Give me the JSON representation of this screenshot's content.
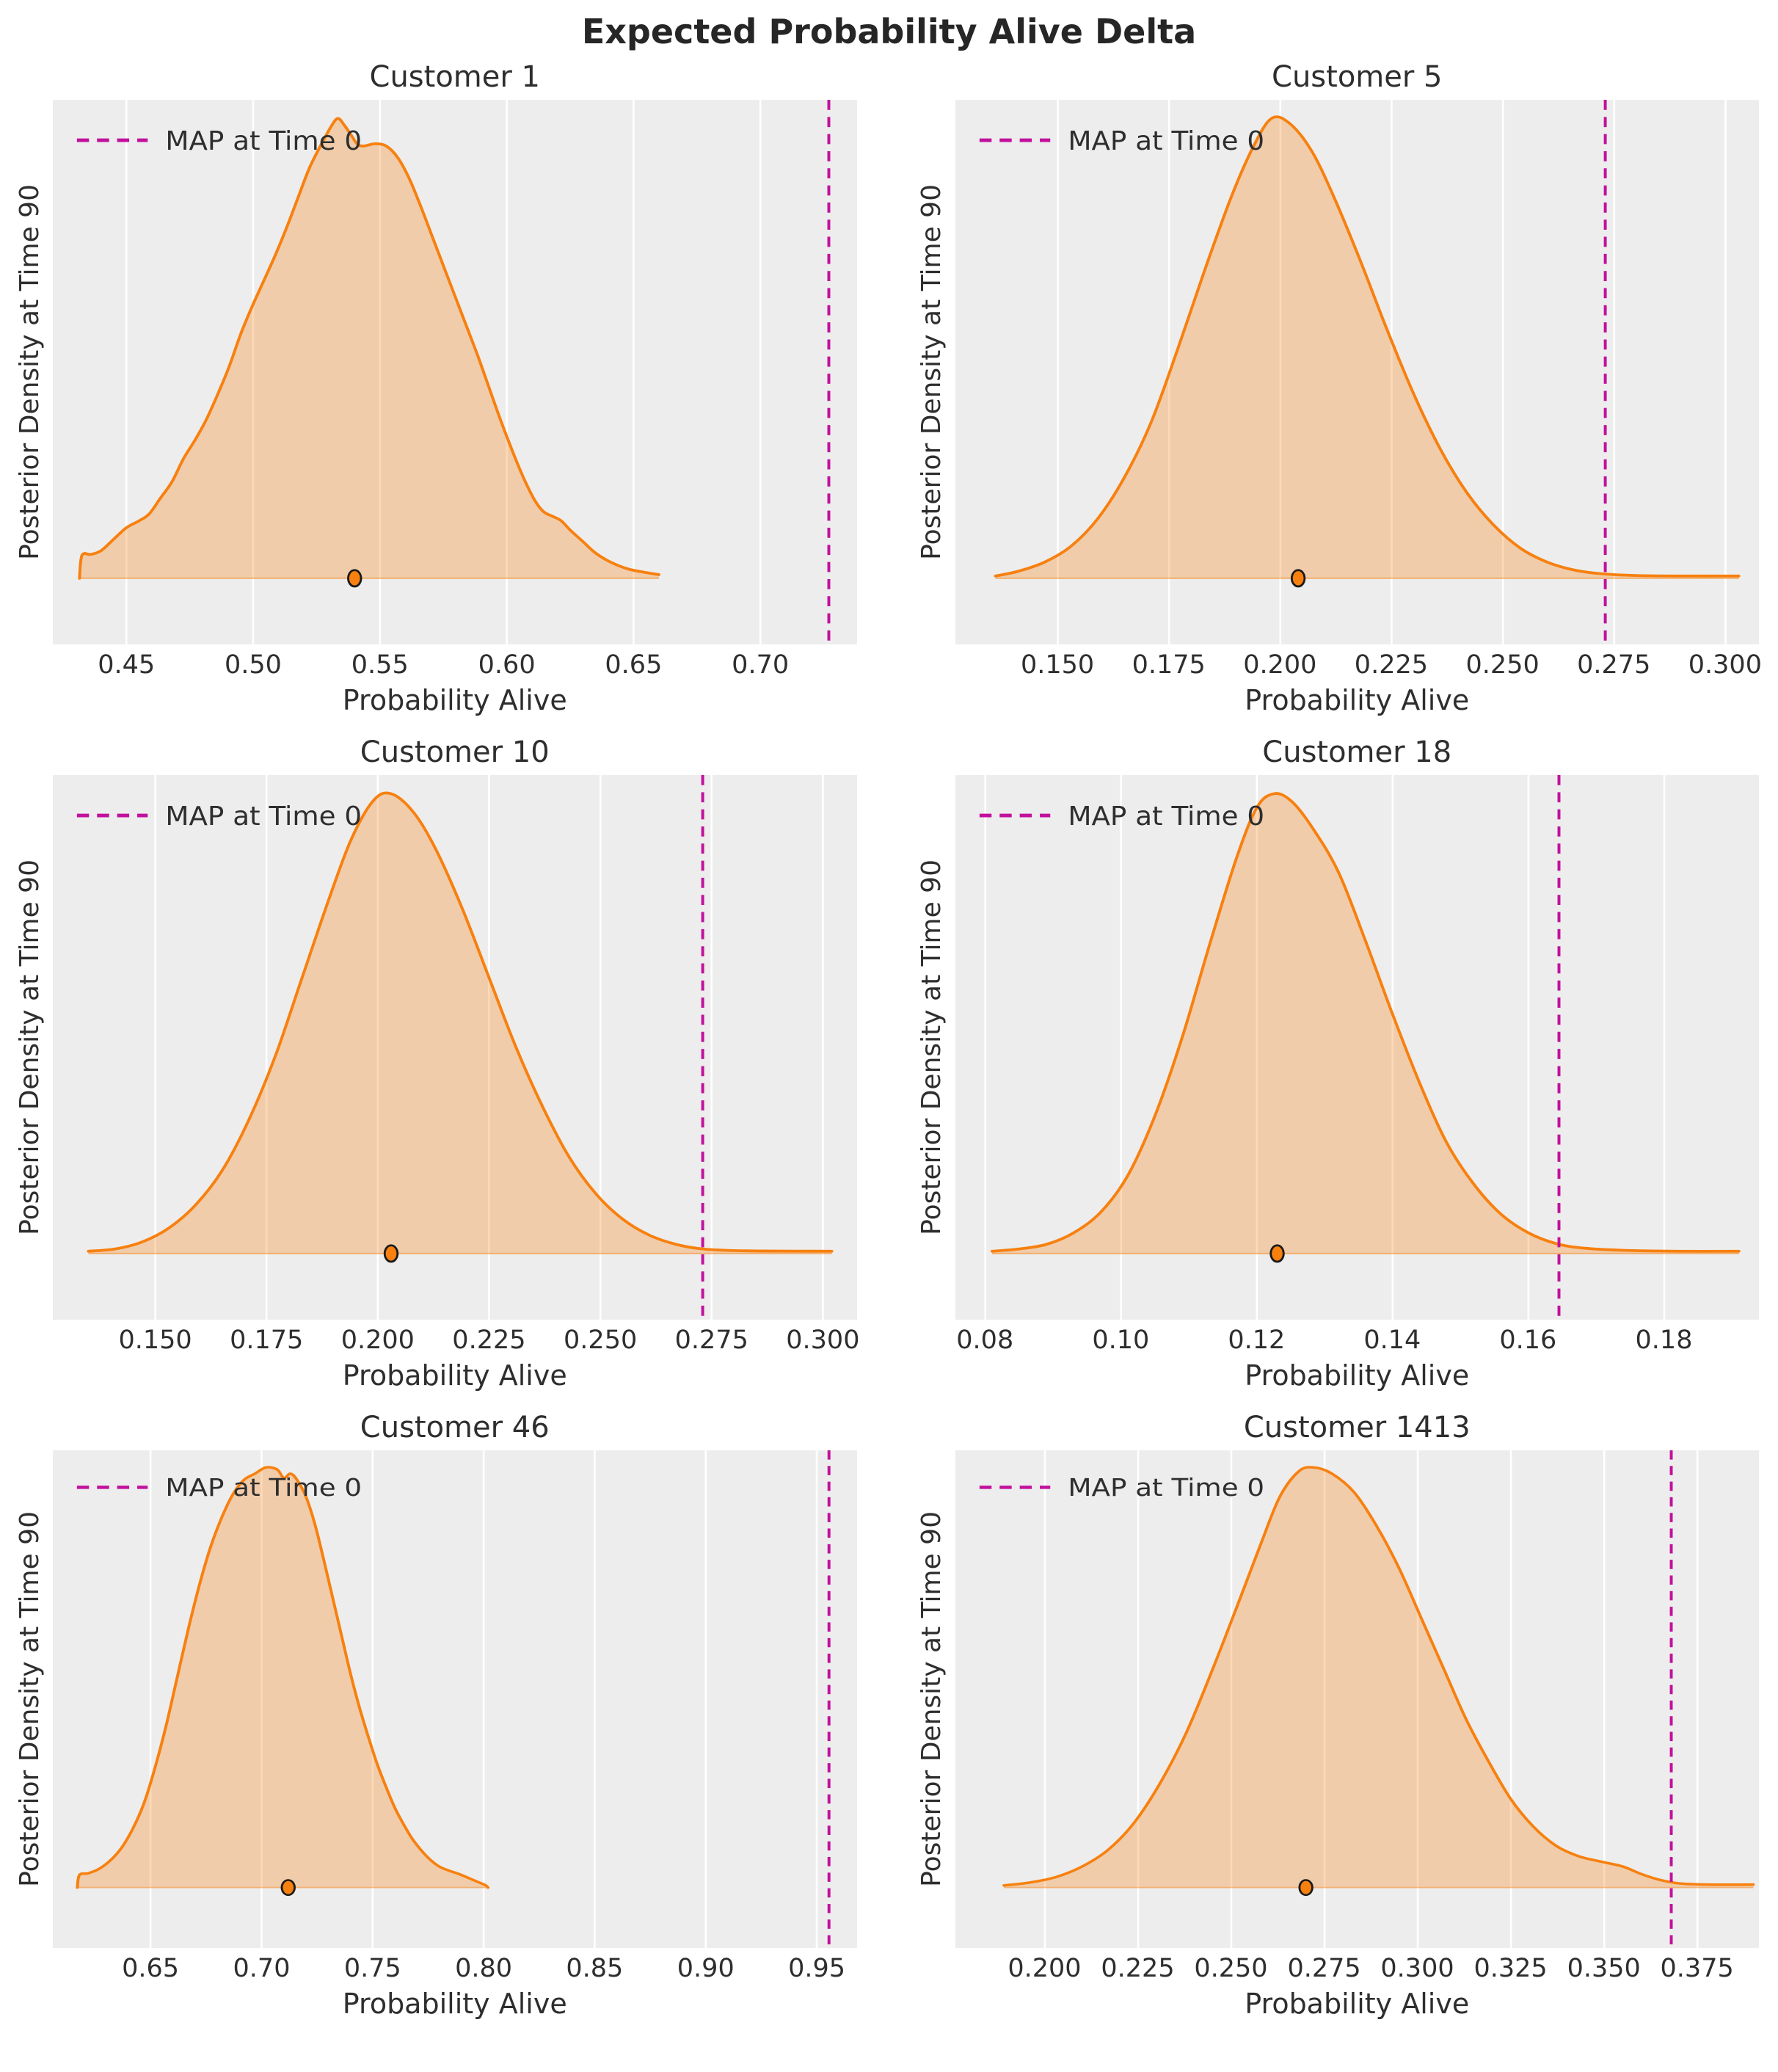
{
  "figure": {
    "title": "Expected Probability Alive Delta"
  },
  "legend": {
    "label": "MAP at Time 0"
  },
  "axes": {
    "xlabel": "Probability Alive",
    "ylabel": "Posterior Density at Time 90"
  },
  "colors": {
    "curve": "#f7800f",
    "fill": "rgba(247,128,15,0.30)",
    "baseline": "rgba(247,128,15,0.45)",
    "map_line": "#c2109c",
    "plot_bg": "#ededed",
    "gridline": "#ffffff",
    "text": "#2e2e2e",
    "dot_fill": "#f7800f",
    "dot_edge": "#1a1a1a"
  },
  "chart_data": [
    {
      "type": "area",
      "title": "Customer 1",
      "xlabel": "Probability Alive",
      "ylabel": "Posterior Density at Time 90",
      "xlim": [
        0.421,
        0.738
      ],
      "ticks": [
        0.45,
        0.5,
        0.55,
        0.6,
        0.65,
        0.7
      ],
      "tick_labels": [
        "0.45",
        "0.50",
        "0.55",
        "0.60",
        "0.65",
        "0.70"
      ],
      "map_at_time_0": 0.727,
      "dot_x": 0.54,
      "kde_y_normalized": true,
      "kde": [
        [
          0.4315,
          0.0
        ],
        [
          0.4325,
          0.05
        ],
        [
          0.436,
          0.052
        ],
        [
          0.44,
          0.06
        ],
        [
          0.445,
          0.085
        ],
        [
          0.45,
          0.11
        ],
        [
          0.455,
          0.125
        ],
        [
          0.459,
          0.14
        ],
        [
          0.4635,
          0.175
        ],
        [
          0.468,
          0.21
        ],
        [
          0.4725,
          0.26
        ],
        [
          0.477,
          0.3
        ],
        [
          0.4815,
          0.345
        ],
        [
          0.486,
          0.4
        ],
        [
          0.4905,
          0.46
        ],
        [
          0.495,
          0.53
        ],
        [
          0.4995,
          0.59
        ],
        [
          0.504,
          0.645
        ],
        [
          0.5085,
          0.7
        ],
        [
          0.513,
          0.76
        ],
        [
          0.5175,
          0.825
        ],
        [
          0.522,
          0.89
        ],
        [
          0.5265,
          0.94
        ],
        [
          0.531,
          0.985
        ],
        [
          0.5335,
          1.0
        ],
        [
          0.536,
          0.985
        ],
        [
          0.5385,
          0.965
        ],
        [
          0.541,
          0.945
        ],
        [
          0.5435,
          0.94
        ],
        [
          0.548,
          0.945
        ],
        [
          0.5525,
          0.94
        ],
        [
          0.557,
          0.915
        ],
        [
          0.5615,
          0.87
        ],
        [
          0.566,
          0.81
        ],
        [
          0.5705,
          0.745
        ],
        [
          0.575,
          0.68
        ],
        [
          0.5795,
          0.615
        ],
        [
          0.584,
          0.55
        ],
        [
          0.5885,
          0.485
        ],
        [
          0.593,
          0.415
        ],
        [
          0.5975,
          0.345
        ],
        [
          0.602,
          0.28
        ],
        [
          0.6065,
          0.22
        ],
        [
          0.611,
          0.17
        ],
        [
          0.6145,
          0.145
        ],
        [
          0.618,
          0.135
        ],
        [
          0.6215,
          0.125
        ],
        [
          0.625,
          0.105
        ],
        [
          0.63,
          0.08
        ],
        [
          0.635,
          0.055
        ],
        [
          0.641,
          0.035
        ],
        [
          0.648,
          0.02
        ],
        [
          0.6555,
          0.012
        ],
        [
          0.66,
          0.008
        ]
      ]
    },
    {
      "type": "area",
      "title": "Customer 5",
      "xlabel": "Probability Alive",
      "ylabel": "Posterior Density at Time 90",
      "xlim": [
        0.127,
        0.3076
      ],
      "ticks": [
        0.15,
        0.175,
        0.2,
        0.225,
        0.25,
        0.275,
        0.3
      ],
      "tick_labels": [
        "0.150",
        "0.175",
        "0.200",
        "0.225",
        "0.250",
        "0.275",
        "0.300"
      ],
      "map_at_time_0": 0.273,
      "dot_x": 0.204,
      "kde_y_normalized": true,
      "kde": [
        [
          0.136,
          0.005
        ],
        [
          0.141,
          0.015
        ],
        [
          0.147,
          0.035
        ],
        [
          0.153,
          0.07
        ],
        [
          0.159,
          0.13
        ],
        [
          0.165,
          0.22
        ],
        [
          0.171,
          0.34
        ],
        [
          0.177,
          0.5
        ],
        [
          0.183,
          0.67
        ],
        [
          0.189,
          0.83
        ],
        [
          0.194,
          0.94
        ],
        [
          0.198,
          1.0
        ],
        [
          0.202,
          0.99
        ],
        [
          0.207,
          0.93
        ],
        [
          0.212,
          0.83
        ],
        [
          0.218,
          0.69
        ],
        [
          0.224,
          0.54
        ],
        [
          0.23,
          0.4
        ],
        [
          0.236,
          0.28
        ],
        [
          0.242,
          0.185
        ],
        [
          0.248,
          0.115
        ],
        [
          0.254,
          0.065
        ],
        [
          0.26,
          0.035
        ],
        [
          0.266,
          0.018
        ],
        [
          0.272,
          0.01
        ],
        [
          0.28,
          0.006
        ],
        [
          0.29,
          0.005
        ],
        [
          0.303,
          0.005
        ]
      ]
    },
    {
      "type": "area",
      "title": "Customer 10",
      "xlabel": "Probability Alive",
      "ylabel": "Posterior Density at Time 90",
      "xlim": [
        0.127,
        0.3076
      ],
      "ticks": [
        0.15,
        0.175,
        0.2,
        0.225,
        0.25,
        0.275,
        0.3
      ],
      "tick_labels": [
        "0.150",
        "0.175",
        "0.200",
        "0.225",
        "0.250",
        "0.275",
        "0.300"
      ],
      "map_at_time_0": 0.273,
      "dot_x": 0.203,
      "kde_y_normalized": true,
      "kde": [
        [
          0.135,
          0.005
        ],
        [
          0.141,
          0.01
        ],
        [
          0.147,
          0.025
        ],
        [
          0.153,
          0.055
        ],
        [
          0.159,
          0.105
        ],
        [
          0.165,
          0.18
        ],
        [
          0.171,
          0.29
        ],
        [
          0.177,
          0.43
        ],
        [
          0.183,
          0.6
        ],
        [
          0.189,
          0.77
        ],
        [
          0.194,
          0.9
        ],
        [
          0.199,
          0.985
        ],
        [
          0.203,
          1.0
        ],
        [
          0.208,
          0.96
        ],
        [
          0.213,
          0.88
        ],
        [
          0.219,
          0.75
        ],
        [
          0.225,
          0.6
        ],
        [
          0.231,
          0.45
        ],
        [
          0.237,
          0.32
        ],
        [
          0.243,
          0.21
        ],
        [
          0.249,
          0.13
        ],
        [
          0.255,
          0.075
        ],
        [
          0.261,
          0.04
        ],
        [
          0.267,
          0.02
        ],
        [
          0.273,
          0.01
        ],
        [
          0.282,
          0.006
        ],
        [
          0.302,
          0.005
        ]
      ]
    },
    {
      "type": "area",
      "title": "Customer 18",
      "xlabel": "Probability Alive",
      "ylabel": "Posterior Density at Time 90",
      "xlim": [
        0.0756,
        0.194
      ],
      "ticks": [
        0.08,
        0.1,
        0.12,
        0.14,
        0.16,
        0.18
      ],
      "tick_labels": [
        "0.08",
        "0.10",
        "0.12",
        "0.14",
        "0.16",
        "0.18"
      ],
      "map_at_time_0": 0.1645,
      "dot_x": 0.123,
      "kde_y_normalized": true,
      "kde": [
        [
          0.081,
          0.005
        ],
        [
          0.085,
          0.01
        ],
        [
          0.089,
          0.02
        ],
        [
          0.093,
          0.045
        ],
        [
          0.097,
          0.09
        ],
        [
          0.101,
          0.17
        ],
        [
          0.105,
          0.3
        ],
        [
          0.109,
          0.47
        ],
        [
          0.113,
          0.67
        ],
        [
          0.117,
          0.86
        ],
        [
          0.12,
          0.97
        ],
        [
          0.1225,
          1.0
        ],
        [
          0.125,
          0.985
        ],
        [
          0.128,
          0.93
        ],
        [
          0.132,
          0.83
        ],
        [
          0.136,
          0.68
        ],
        [
          0.14,
          0.52
        ],
        [
          0.144,
          0.37
        ],
        [
          0.148,
          0.24
        ],
        [
          0.152,
          0.15
        ],
        [
          0.156,
          0.085
        ],
        [
          0.16,
          0.045
        ],
        [
          0.164,
          0.022
        ],
        [
          0.168,
          0.012
        ],
        [
          0.174,
          0.007
        ],
        [
          0.182,
          0.005
        ],
        [
          0.191,
          0.005
        ]
      ]
    },
    {
      "type": "area",
      "title": "Customer 46",
      "xlabel": "Probability Alive",
      "ylabel": "Posterior Density at Time 90",
      "xlim": [
        0.606,
        0.968
      ],
      "ticks": [
        0.65,
        0.7,
        0.75,
        0.8,
        0.85,
        0.9,
        0.95
      ],
      "tick_labels": [
        "0.65",
        "0.70",
        "0.75",
        "0.80",
        "0.85",
        "0.90",
        "0.95"
      ],
      "map_at_time_0": 0.9555,
      "dot_x": 0.712,
      "kde_y_normalized": true,
      "kde": [
        [
          0.617,
          0.0
        ],
        [
          0.618,
          0.03
        ],
        [
          0.622,
          0.034
        ],
        [
          0.627,
          0.045
        ],
        [
          0.632,
          0.065
        ],
        [
          0.637,
          0.095
        ],
        [
          0.642,
          0.14
        ],
        [
          0.647,
          0.2
        ],
        [
          0.652,
          0.285
        ],
        [
          0.657,
          0.385
        ],
        [
          0.662,
          0.5
        ],
        [
          0.667,
          0.615
        ],
        [
          0.672,
          0.72
        ],
        [
          0.677,
          0.81
        ],
        [
          0.682,
          0.88
        ],
        [
          0.687,
          0.935
        ],
        [
          0.692,
          0.97
        ],
        [
          0.697,
          0.985
        ],
        [
          0.702,
          1.0
        ],
        [
          0.707,
          0.995
        ],
        [
          0.71,
          0.975
        ],
        [
          0.713,
          0.985
        ],
        [
          0.716,
          0.97
        ],
        [
          0.72,
          0.93
        ],
        [
          0.724,
          0.865
        ],
        [
          0.728,
          0.78
        ],
        [
          0.732,
          0.69
        ],
        [
          0.736,
          0.6
        ],
        [
          0.74,
          0.51
        ],
        [
          0.744,
          0.43
        ],
        [
          0.748,
          0.36
        ],
        [
          0.752,
          0.295
        ],
        [
          0.756,
          0.24
        ],
        [
          0.76,
          0.19
        ],
        [
          0.764,
          0.15
        ],
        [
          0.768,
          0.115
        ],
        [
          0.772,
          0.088
        ],
        [
          0.776,
          0.066
        ],
        [
          0.78,
          0.05
        ],
        [
          0.7845,
          0.04
        ],
        [
          0.789,
          0.032
        ],
        [
          0.7935,
          0.022
        ],
        [
          0.798,
          0.012
        ],
        [
          0.801,
          0.005
        ],
        [
          0.802,
          0.0
        ]
      ]
    },
    {
      "type": "area",
      "title": "Customer 1413",
      "xlabel": "Probability Alive",
      "ylabel": "Posterior Density at Time 90",
      "xlim": [
        0.176,
        0.3916
      ],
      "ticks": [
        0.2,
        0.225,
        0.25,
        0.275,
        0.3,
        0.325,
        0.35,
        0.375
      ],
      "tick_labels": [
        "0.200",
        "0.225",
        "0.250",
        "0.275",
        "0.300",
        "0.325",
        "0.350",
        "0.375"
      ],
      "map_at_time_0": 0.368,
      "dot_x": 0.27,
      "kde_y_normalized": true,
      "kde": [
        [
          0.189,
          0.005
        ],
        [
          0.196,
          0.012
        ],
        [
          0.203,
          0.025
        ],
        [
          0.21,
          0.05
        ],
        [
          0.217,
          0.09
        ],
        [
          0.224,
          0.155
        ],
        [
          0.231,
          0.25
        ],
        [
          0.238,
          0.37
        ],
        [
          0.245,
          0.52
        ],
        [
          0.252,
          0.68
        ],
        [
          0.258,
          0.82
        ],
        [
          0.263,
          0.93
        ],
        [
          0.268,
          0.99
        ],
        [
          0.272,
          1.0
        ],
        [
          0.277,
          0.985
        ],
        [
          0.283,
          0.94
        ],
        [
          0.289,
          0.86
        ],
        [
          0.295,
          0.76
        ],
        [
          0.301,
          0.64
        ],
        [
          0.307,
          0.52
        ],
        [
          0.313,
          0.4
        ],
        [
          0.319,
          0.3
        ],
        [
          0.325,
          0.21
        ],
        [
          0.331,
          0.145
        ],
        [
          0.337,
          0.1
        ],
        [
          0.343,
          0.075
        ],
        [
          0.349,
          0.062
        ],
        [
          0.355,
          0.05
        ],
        [
          0.36,
          0.032
        ],
        [
          0.365,
          0.018
        ],
        [
          0.37,
          0.01
        ],
        [
          0.378,
          0.007
        ],
        [
          0.39,
          0.007
        ]
      ]
    }
  ]
}
